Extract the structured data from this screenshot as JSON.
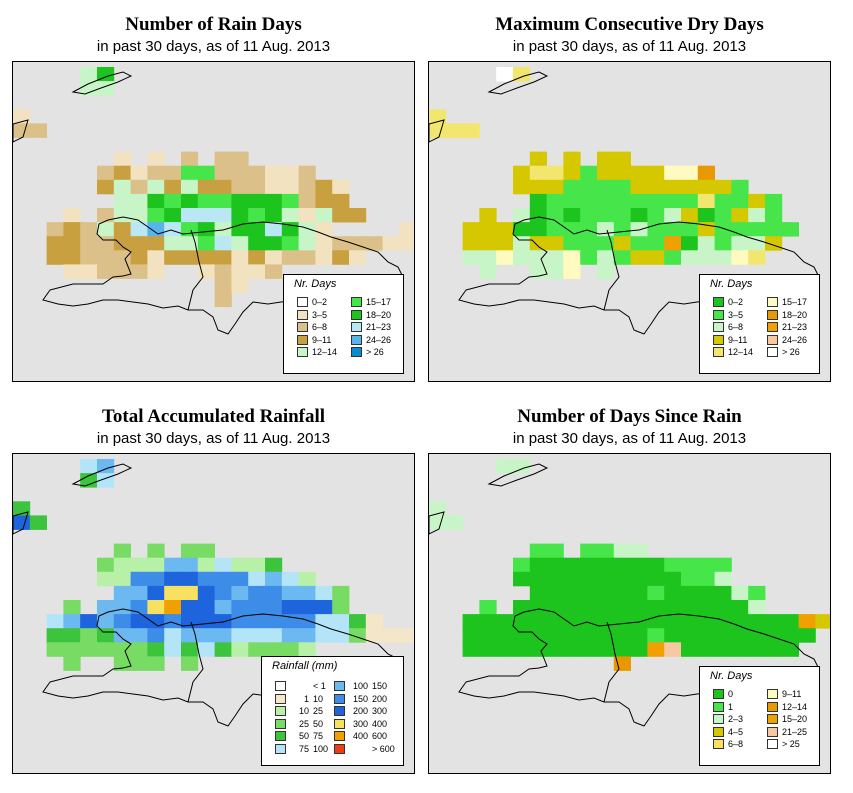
{
  "panels": [
    {
      "id": "rain-days",
      "title": "Number of Rain Days",
      "subtitle": "in past 30 days, as of  11 Aug. 2013",
      "legend": {
        "title": "Nr. Days",
        "items": [
          {
            "label": "0–2",
            "color": "#ffffff"
          },
          {
            "label": "3–5",
            "color": "#f2e2c0"
          },
          {
            "label": "6–8",
            "color": "#dcc08a"
          },
          {
            "label": "9–11",
            "color": "#c8a040"
          },
          {
            "label": "12–14",
            "color": "#c8f5c8"
          },
          {
            "label": "15–17",
            "color": "#46e64a"
          },
          {
            "label": "18–20",
            "color": "#1ec41e"
          },
          {
            "label": "21–23",
            "color": "#b9e8f4"
          },
          {
            "label": "24–26",
            "color": "#5ab4ec"
          },
          {
            "label": "> 26",
            "color": "#0a8ad0"
          }
        ]
      }
    },
    {
      "id": "dry-days",
      "title": "Maximum Consecutive Dry Days",
      "subtitle": "in past 30 days, as of  11 Aug. 2013",
      "legend": {
        "title": "Nr. Days",
        "items": [
          {
            "label": "0–2",
            "color": "#1ec41e"
          },
          {
            "label": "3–5",
            "color": "#46e64a"
          },
          {
            "label": "6–8",
            "color": "#c8f5c8"
          },
          {
            "label": "9–11",
            "color": "#d6c800"
          },
          {
            "label": "12–14",
            "color": "#f2e66e"
          },
          {
            "label": "15–17",
            "color": "#fffac0"
          },
          {
            "label": "18–20",
            "color": "#e89800"
          },
          {
            "label": "21–23",
            "color": "#f0a000"
          },
          {
            "label": "24–26",
            "color": "#f8c8a0"
          },
          {
            "label": "> 26",
            "color": "#ffffff"
          }
        ]
      }
    },
    {
      "id": "rainfall",
      "title": "Total Accumulated Rainfall",
      "subtitle": "in past 30 days, as of  11 Aug. 2013",
      "legend": {
        "title": "Rainfall (mm)",
        "items": [
          {
            "lo": "",
            "hi": "< 1",
            "color": "#ffffff"
          },
          {
            "lo": "1",
            "hi": "10",
            "color": "#f4e6c8"
          },
          {
            "lo": "10",
            "hi": "25",
            "color": "#b8f0a8"
          },
          {
            "lo": "25",
            "hi": "50",
            "color": "#78dc64"
          },
          {
            "lo": "50",
            "hi": "75",
            "color": "#3cc43c"
          },
          {
            "lo": "75",
            "hi": "100",
            "color": "#b4e4f8"
          },
          {
            "lo": "100",
            "hi": "150",
            "color": "#6cb8f0"
          },
          {
            "lo": "150",
            "hi": "200",
            "color": "#3c8ce8"
          },
          {
            "lo": "200",
            "hi": "300",
            "color": "#1e64dc"
          },
          {
            "lo": "300",
            "hi": "400",
            "color": "#f8e060"
          },
          {
            "lo": "400",
            "hi": "600",
            "color": "#f0a000"
          },
          {
            "lo": "",
            "hi": "> 600",
            "color": "#f03c14"
          }
        ]
      }
    },
    {
      "id": "since-rain",
      "title": "Number of Days Since Rain",
      "subtitle": "in past 30 days, as of  11 Aug. 2013",
      "legend": {
        "title": "Nr. Days",
        "items": [
          {
            "label": "0",
            "color": "#1ec41e"
          },
          {
            "label": "1",
            "color": "#46e64a"
          },
          {
            "label": "2–3",
            "color": "#c8f5c8"
          },
          {
            "label": "4–5",
            "color": "#d6c800"
          },
          {
            "label": "6–8",
            "color": "#f8e060"
          },
          {
            "label": "9–11",
            "color": "#fffac0"
          },
          {
            "label": "12–14",
            "color": "#e89800"
          },
          {
            "label": "15–20",
            "color": "#f0a000"
          },
          {
            "label": "21–25",
            "color": "#f8c8a0"
          },
          {
            "label": "> 25",
            "color": "#ffffff"
          }
        ]
      }
    }
  ],
  "map_background": "#e3e3e3"
}
